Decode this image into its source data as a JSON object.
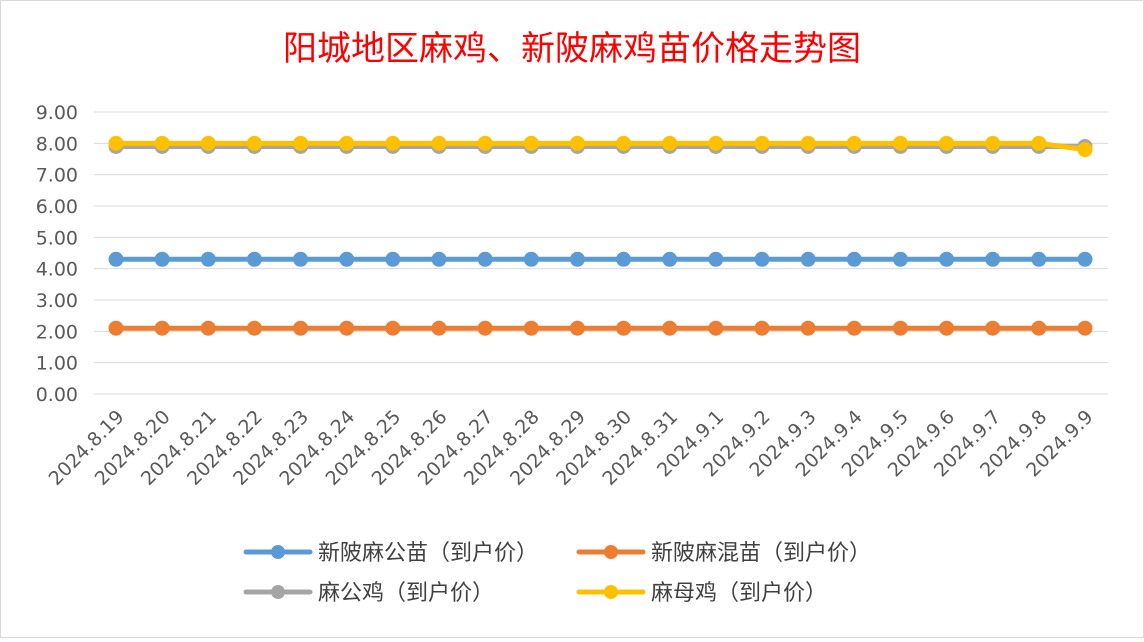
{
  "chart_data": {
    "type": "line",
    "title": "阳城地区麻鸡、新陂麻鸡苗价格走势图",
    "xlabel": "",
    "ylabel": "",
    "ylim": [
      0,
      9
    ],
    "y_ticks": [
      "0.00",
      "1.00",
      "2.00",
      "3.00",
      "4.00",
      "5.00",
      "6.00",
      "7.00",
      "8.00",
      "9.00"
    ],
    "grid": true,
    "legend_position": "bottom",
    "categories": [
      "2024.8.19",
      "2024.8.20",
      "2024.8.21",
      "2024.8.22",
      "2024.8.23",
      "2024.8.24",
      "2024.8.25",
      "2024.8.26",
      "2024.8.27",
      "2024.8.28",
      "2024.8.29",
      "2024.8.30",
      "2024.8.31",
      "2024.9.1",
      "2024.9.2",
      "2024.9.3",
      "2024.9.4",
      "2024.9.5",
      "2024.9.6",
      "2024.9.7",
      "2024.9.8",
      "2024.9.9"
    ],
    "series": [
      {
        "name": "新陂麻公苗（到户价）",
        "color": "#5B9BD5",
        "values": [
          4.3,
          4.3,
          4.3,
          4.3,
          4.3,
          4.3,
          4.3,
          4.3,
          4.3,
          4.3,
          4.3,
          4.3,
          4.3,
          4.3,
          4.3,
          4.3,
          4.3,
          4.3,
          4.3,
          4.3,
          4.3,
          4.3
        ]
      },
      {
        "name": "新陂麻混苗（到户价）",
        "color": "#ED7D31",
        "values": [
          2.1,
          2.1,
          2.1,
          2.1,
          2.1,
          2.1,
          2.1,
          2.1,
          2.1,
          2.1,
          2.1,
          2.1,
          2.1,
          2.1,
          2.1,
          2.1,
          2.1,
          2.1,
          2.1,
          2.1,
          2.1,
          2.1
        ]
      },
      {
        "name": "麻公鸡（到户价）",
        "color": "#A5A5A5",
        "values": [
          7.9,
          7.9,
          7.9,
          7.9,
          7.9,
          7.9,
          7.9,
          7.9,
          7.9,
          7.9,
          7.9,
          7.9,
          7.9,
          7.9,
          7.9,
          7.9,
          7.9,
          7.9,
          7.9,
          7.9,
          7.9,
          7.9
        ]
      },
      {
        "name": "麻母鸡（到户价）",
        "color": "#FFC000",
        "values": [
          8.0,
          8.0,
          8.0,
          8.0,
          8.0,
          8.0,
          8.0,
          8.0,
          8.0,
          8.0,
          8.0,
          8.0,
          8.0,
          8.0,
          8.0,
          8.0,
          8.0,
          8.0,
          8.0,
          8.0,
          8.0,
          7.8
        ]
      }
    ],
    "colors": {
      "title": "#FF0000",
      "axis_text": "#595959",
      "grid": "#D9D9D9",
      "legend_text": "#404040"
    }
  }
}
